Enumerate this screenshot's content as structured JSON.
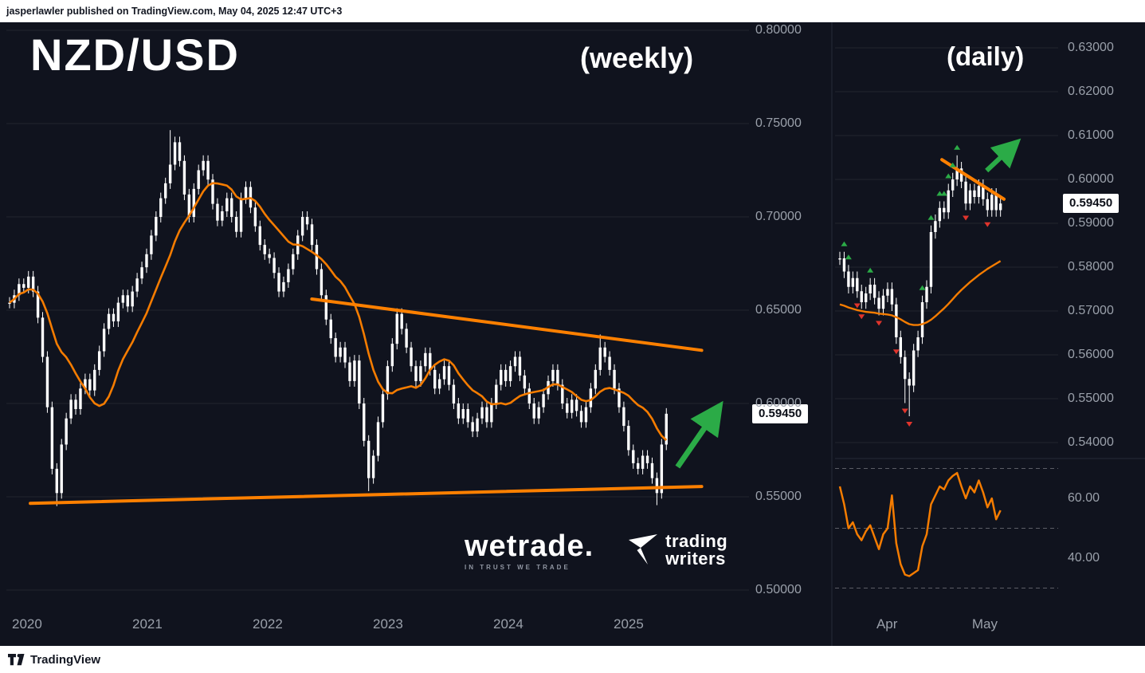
{
  "attribution": {
    "text": "jasperlawler published on TradingView.com, May 04, 2025 12:47 UTC+3"
  },
  "footer": {
    "logo_text": "TradingView"
  },
  "watermark": {
    "brand": "wetrade.",
    "tagline": "IN TRUST WE TRADE",
    "partner_line1": "trading",
    "partner_line2": "writers"
  },
  "colors": {
    "background": "#10131e",
    "candle": "#ffffff",
    "ma": "#f57c00",
    "trend": "#ff8000",
    "green": "#2bab47",
    "red": "#e0342c",
    "grid": "rgba(255,255,255,0.08)",
    "band": "rgba(255,255,255,0.32)",
    "divider": "#262b38",
    "axis_text": "#9aa0aa"
  },
  "left_chart": {
    "title": "NZD/USD",
    "timeframe_label": "(weekly)",
    "price_tag": "0.59450"
  },
  "right_chart": {
    "timeframe_label": "(daily)",
    "price_tag": "0.59450"
  },
  "chart_data": [
    {
      "type": "candlestick",
      "title": "NZD/USD",
      "timeframe": "weekly",
      "ylim": [
        0.5,
        0.8
      ],
      "y_ticks": [
        "0.80000",
        "0.75000",
        "0.70000",
        "0.65000",
        "0.60000",
        "0.55000",
        "0.50000"
      ],
      "x_ticks": [
        "2020",
        "2021",
        "2022",
        "2023",
        "2024",
        "2025"
      ],
      "closes": [
        0.654,
        0.658,
        0.664,
        0.662,
        0.668,
        0.66,
        0.646,
        0.625,
        0.598,
        0.565,
        0.552,
        0.578,
        0.592,
        0.602,
        0.597,
        0.608,
        0.613,
        0.607,
        0.618,
        0.628,
        0.64,
        0.648,
        0.644,
        0.654,
        0.658,
        0.652,
        0.66,
        0.667,
        0.673,
        0.68,
        0.69,
        0.7,
        0.71,
        0.718,
        0.728,
        0.74,
        0.73,
        0.712,
        0.7,
        0.715,
        0.725,
        0.73,
        0.72,
        0.707,
        0.698,
        0.703,
        0.71,
        0.7,
        0.692,
        0.71,
        0.716,
        0.705,
        0.695,
        0.685,
        0.68,
        0.678,
        0.67,
        0.66,
        0.665,
        0.672,
        0.68,
        0.69,
        0.7,
        0.696,
        0.685,
        0.672,
        0.658,
        0.645,
        0.635,
        0.625,
        0.63,
        0.622,
        0.612,
        0.623,
        0.6,
        0.58,
        0.56,
        0.572,
        0.59,
        0.605,
        0.62,
        0.632,
        0.648,
        0.64,
        0.63,
        0.62,
        0.612,
        0.62,
        0.627,
        0.618,
        0.608,
        0.613,
        0.62,
        0.61,
        0.6,
        0.592,
        0.597,
        0.59,
        0.585,
        0.592,
        0.598,
        0.59,
        0.6,
        0.61,
        0.618,
        0.612,
        0.62,
        0.625,
        0.615,
        0.608,
        0.6,
        0.592,
        0.598,
        0.605,
        0.612,
        0.618,
        0.61,
        0.6,
        0.595,
        0.602,
        0.596,
        0.59,
        0.598,
        0.608,
        0.618,
        0.63,
        0.625,
        0.618,
        0.608,
        0.598,
        0.588,
        0.575,
        0.568,
        0.565,
        0.572,
        0.568,
        0.56,
        0.552,
        0.578,
        0.5945
      ],
      "low_overrides": {
        "10": 0.545,
        "76": 0.553,
        "137": 0.5455
      },
      "high_overrides": {
        "34": 0.7465,
        "125": 0.637
      },
      "ma_window": 13,
      "trendlines": [
        {
          "t1": 2022.36,
          "p1": 0.656,
          "t2": 2025.6,
          "p2": 0.6285
        },
        {
          "t1": 2020.02,
          "p1": 0.5465,
          "t2": 2025.6,
          "p2": 0.5555
        }
      ],
      "arrow": {
        "t1": 2025.4,
        "p1": 0.566,
        "t2": 2025.7,
        "p2": 0.594
      },
      "last_price": 0.5945
    },
    {
      "type": "candlestick",
      "timeframe": "daily",
      "ylim": [
        0.54,
        0.63
      ],
      "y_ticks": [
        "0.63000",
        "0.62000",
        "0.61000",
        "0.60000",
        "0.59000",
        "0.58000",
        "0.57000",
        "0.56000",
        "0.55000",
        "0.54000"
      ],
      "x_ticks": [
        {
          "label": "Apr",
          "i": 11
        },
        {
          "label": "May",
          "i": 33
        }
      ],
      "closes": [
        0.582,
        0.579,
        0.5755,
        0.5775,
        0.5745,
        0.572,
        0.574,
        0.576,
        0.573,
        0.5705,
        0.5735,
        0.575,
        0.5715,
        0.564,
        0.5595,
        0.5545,
        0.553,
        0.561,
        0.564,
        0.572,
        0.5755,
        0.588,
        0.5905,
        0.5935,
        0.5925,
        0.5975,
        0.6,
        0.6025,
        0.5995,
        0.5945,
        0.5975,
        0.596,
        0.5985,
        0.5955,
        0.593,
        0.5965,
        0.593,
        0.5945
      ],
      "low_overrides": {
        "15": 0.549,
        "16": 0.546
      },
      "high_overrides": {
        "27": 0.6055
      },
      "ma": [
        0.5715,
        0.5712,
        0.5708,
        0.5705,
        0.5702,
        0.57,
        0.5698,
        0.5697,
        0.5696,
        0.5694,
        0.5693,
        0.5692,
        0.569,
        0.5686,
        0.5681,
        0.5675,
        0.567,
        0.5668,
        0.5668,
        0.567,
        0.5674,
        0.568,
        0.5688,
        0.5697,
        0.5706,
        0.5716,
        0.5727,
        0.5738,
        0.5748,
        0.5757,
        0.5766,
        0.5774,
        0.5782,
        0.5789,
        0.5796,
        0.5802,
        0.5808,
        0.5814
      ],
      "markers": {
        "up": [
          1,
          2,
          7,
          19,
          21,
          23,
          24,
          25,
          26,
          27
        ],
        "down": [
          4,
          5,
          9,
          13,
          15,
          16,
          29,
          34
        ]
      },
      "trendline": {
        "i1": 23.5,
        "p1": 0.6045,
        "i2": 37.8,
        "p2": 0.5955
      },
      "arrow": {
        "i1": 33.8,
        "p1": 0.602,
        "i2": 39.3,
        "p2": 0.6071
      },
      "last_price": 0.5945
    },
    {
      "type": "line",
      "name": "oscillator",
      "values": [
        64,
        58,
        50,
        52,
        48,
        46,
        49,
        51,
        47,
        43,
        48,
        50,
        61,
        45,
        38,
        34.5,
        34,
        35,
        36,
        44,
        48,
        58,
        61,
        64,
        63,
        66,
        67.5,
        68.5,
        64,
        60,
        64,
        62,
        66,
        62,
        57,
        60,
        53,
        56
      ],
      "bands": [
        70,
        50,
        30
      ],
      "y_ticks": [
        {
          "label": "60.00",
          "v": 60
        },
        {
          "label": "40.00",
          "v": 40
        }
      ]
    }
  ]
}
